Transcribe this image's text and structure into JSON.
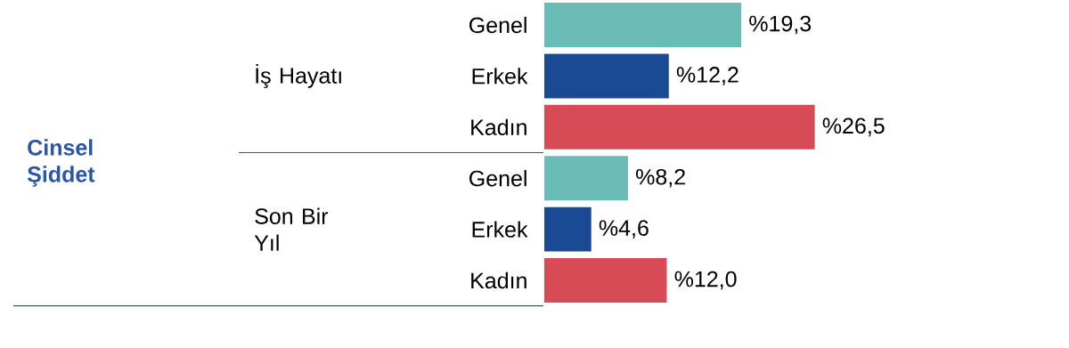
{
  "chart_data": {
    "type": "bar",
    "orientation": "horizontal",
    "categories": [
      "Genel",
      "Erkek",
      "Kadın",
      "Genel",
      "Erkek",
      "Kadın"
    ],
    "values": [
      19.3,
      12.2,
      26.5,
      8.2,
      4.6,
      12.0
    ],
    "colors": [
      "#6bbcb7",
      "#1a4a94",
      "#d64b55",
      "#6bbcb7",
      "#1a4a94",
      "#d64b55"
    ],
    "value_labels": [
      "%19,3",
      "%12,2",
      "%26,5",
      "%8,2",
      "%4,6",
      "%12,0"
    ],
    "annotations": [
      "Cinsel Şiddet",
      "İş Hayatı",
      "Son Bir Yıl"
    ]
  }
}
